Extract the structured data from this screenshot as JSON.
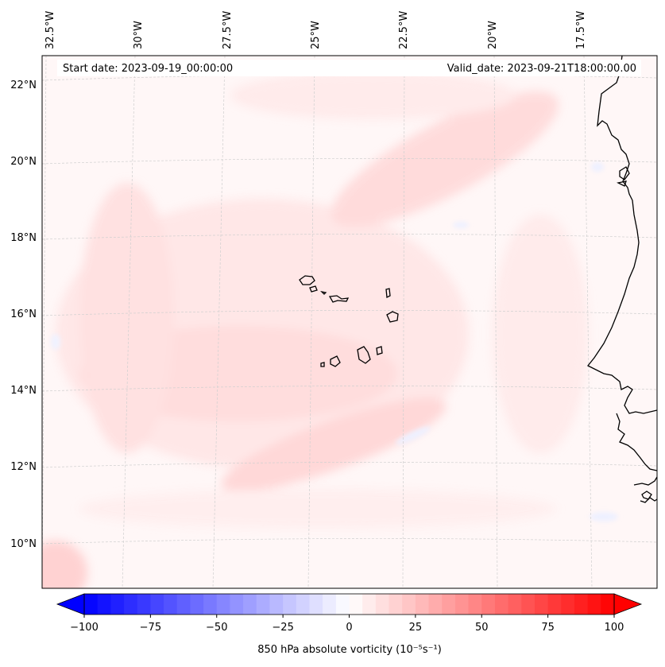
{
  "map": {
    "start_date": "Start date: 2023-09-19_00:00:00",
    "valid_date": "Valid_date: 2023-09-21T18:00:00.00",
    "lon_labels": [
      "32.5°W",
      "30°W",
      "27.5°W",
      "25°W",
      "22.5°W",
      "20°W",
      "17.5°W"
    ],
    "lat_labels": [
      "22°N",
      "20°N",
      "18°N",
      "16°N",
      "14°N",
      "12°N",
      "10°N"
    ],
    "colors": {
      "negative": "#0000ff",
      "neutral": "#ffffff",
      "positive": "#ff0000",
      "background_tint": "#fff5f5",
      "coastline": "#000000",
      "gridline": "#cfcfcf"
    }
  },
  "colorbar": {
    "label": "850 hPa absolute vorticity (10⁻⁵s⁻¹)",
    "ticks": [
      "−100",
      "−75",
      "−50",
      "−25",
      "0",
      "25",
      "50",
      "75",
      "100"
    ],
    "range": [
      -100,
      100
    ],
    "steps": 40,
    "extend": "both"
  }
}
